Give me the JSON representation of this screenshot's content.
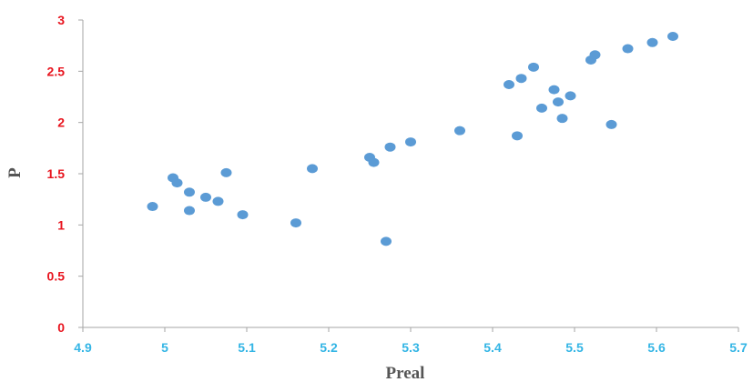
{
  "chart_data": {
    "type": "scatter",
    "xlabel": "Preal",
    "ylabel": "P",
    "xlim": [
      4.9,
      5.7
    ],
    "ylim": [
      0,
      3
    ],
    "x_ticks": [
      "4.9",
      "5",
      "5.1",
      "5.2",
      "5.3",
      "5.4",
      "5.5",
      "5.6",
      "5.7"
    ],
    "y_ticks": [
      "0",
      "0.5",
      "1",
      "1.5",
      "2",
      "2.5",
      "3"
    ],
    "grid": false,
    "legend": "none",
    "colors": {
      "point": "#5B9BD5",
      "x_tick_label": "#33B5E5",
      "y_tick_label": "#E8141E",
      "axis_line": "#A6A6A6"
    },
    "points": [
      {
        "x": 4.985,
        "y": 1.18
      },
      {
        "x": 5.01,
        "y": 1.46
      },
      {
        "x": 5.015,
        "y": 1.41
      },
      {
        "x": 5.03,
        "y": 1.32
      },
      {
        "x": 5.03,
        "y": 1.14
      },
      {
        "x": 5.05,
        "y": 1.27
      },
      {
        "x": 5.065,
        "y": 1.23
      },
      {
        "x": 5.075,
        "y": 1.51
      },
      {
        "x": 5.095,
        "y": 1.1
      },
      {
        "x": 5.16,
        "y": 1.02
      },
      {
        "x": 5.18,
        "y": 1.55
      },
      {
        "x": 5.25,
        "y": 1.66
      },
      {
        "x": 5.255,
        "y": 1.61
      },
      {
        "x": 5.27,
        "y": 0.84
      },
      {
        "x": 5.275,
        "y": 1.76
      },
      {
        "x": 5.3,
        "y": 1.81
      },
      {
        "x": 5.36,
        "y": 1.92
      },
      {
        "x": 5.42,
        "y": 2.37
      },
      {
        "x": 5.43,
        "y": 1.87
      },
      {
        "x": 5.435,
        "y": 2.43
      },
      {
        "x": 5.45,
        "y": 2.54
      },
      {
        "x": 5.46,
        "y": 2.14
      },
      {
        "x": 5.475,
        "y": 2.32
      },
      {
        "x": 5.48,
        "y": 2.2
      },
      {
        "x": 5.485,
        "y": 2.04
      },
      {
        "x": 5.495,
        "y": 2.26
      },
      {
        "x": 5.52,
        "y": 2.61
      },
      {
        "x": 5.525,
        "y": 2.66
      },
      {
        "x": 5.545,
        "y": 1.98
      },
      {
        "x": 5.565,
        "y": 2.72
      },
      {
        "x": 5.595,
        "y": 2.78
      },
      {
        "x": 5.62,
        "y": 2.84
      }
    ]
  }
}
